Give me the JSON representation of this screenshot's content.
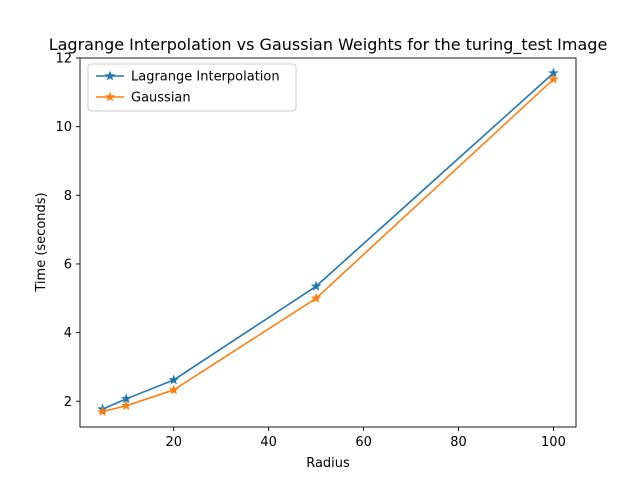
{
  "chart_data": {
    "type": "line",
    "title": "Lagrange Interpolation vs Gaussian Weights for the turing_test Image",
    "xlabel": "Radius",
    "ylabel": "Time (seconds)",
    "xlim": [
      0.25,
      104.75
    ],
    "ylim": [
      1.25,
      12.0
    ],
    "x_ticks": [
      20,
      40,
      60,
      80,
      100
    ],
    "y_ticks": [
      2,
      4,
      6,
      8,
      10,
      12
    ],
    "grid": false,
    "legend_position": "top-left",
    "x": [
      5,
      10,
      20,
      50,
      100
    ],
    "series": [
      {
        "name": "Lagrange Interpolation",
        "color": "#1f77b4",
        "marker": "star",
        "values": [
          1.77,
          2.07,
          2.62,
          5.35,
          11.56
        ]
      },
      {
        "name": "Gaussian",
        "color": "#ff7f0e",
        "marker": "star",
        "values": [
          1.7,
          1.87,
          2.33,
          5.0,
          11.38
        ]
      }
    ]
  }
}
